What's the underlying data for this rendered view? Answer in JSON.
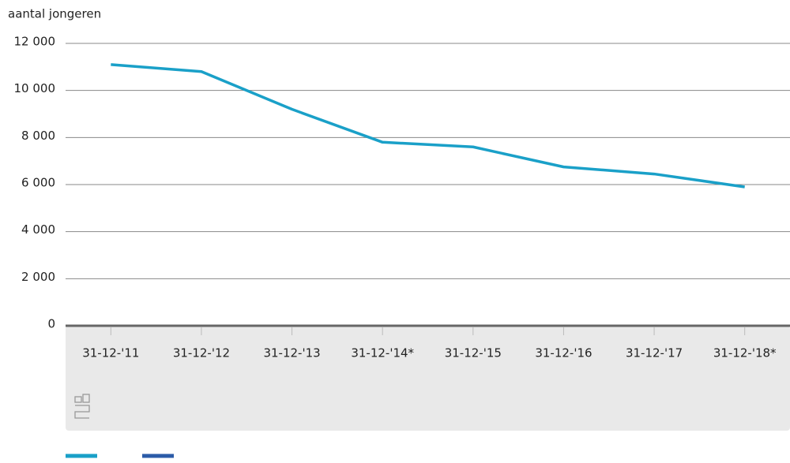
{
  "chart_data": {
    "type": "line",
    "y_label": "aantal jongeren",
    "categories": [
      "31-12-'11",
      "31-12-'12",
      "31-12-'13",
      "31-12-'14*",
      "31-12-'15",
      "31-12-'16",
      "31-12-'17",
      "31-12-'18*"
    ],
    "series": [
      {
        "color": "#1aa0c8",
        "values": [
          11100,
          10800,
          9200,
          7800,
          7600,
          6750,
          6450,
          5900
        ]
      }
    ],
    "ylim": [
      0,
      12000
    ],
    "yticks": [
      0,
      {
        "value": 2000,
        "label": "2 000"
      },
      {
        "value": 4000,
        "label": "4 000"
      },
      {
        "value": 6000,
        "label": "6 000"
      },
      {
        "value": 8000,
        "label": "8 000"
      },
      {
        "value": 10000,
        "label": "10 000"
      },
      {
        "value": 12000,
        "label": "12 000"
      }
    ],
    "grid": true
  }
}
